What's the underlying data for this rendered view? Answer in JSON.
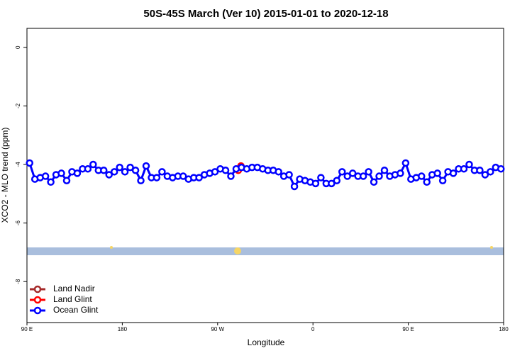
{
  "chart_data": {
    "type": "line",
    "title": "50S-45S March (Ver 10)   2015-01-01 to 2020-12-18",
    "x_label": "Longitude",
    "y_label": "XCO2 - MLO trend (ppm)",
    "xlim": [
      90,
      540
    ],
    "ylim": [
      -9.4,
      0.65
    ],
    "xticks": [
      {
        "value": 90,
        "label": "90 E"
      },
      180,
      {
        "value": 270,
        "label": "90 W"
      },
      {
        "value": 360,
        "label": "0"
      },
      {
        "value": 450,
        "label": "90 E"
      },
      {
        "value": 540,
        "label": "180"
      }
    ],
    "yticks": [
      0,
      -2,
      -4,
      -6,
      -8
    ],
    "legend": "bottom-left",
    "series": [
      {
        "name": "Land Nadir",
        "color": "#a52a2a",
        "x": [],
        "values": []
      },
      {
        "name": "Land Glint",
        "color": "#ff0000",
        "x": [
          289.5,
          292
        ],
        "values": [
          -4.2,
          -4.05
        ]
      },
      {
        "name": "Ocean Glint",
        "color": "#0000ff",
        "x": [
          92.5,
          97.5,
          102.5,
          107.5,
          112.5,
          117.5,
          122.5,
          127.5,
          132.5,
          137.5,
          142.5,
          147.5,
          152.5,
          157.5,
          162.5,
          167.5,
          172.5,
          177.5,
          182.5,
          187.5,
          192.5,
          197.5,
          202.5,
          207.5,
          212.5,
          217.5,
          222.5,
          227.5,
          232.5,
          237.5,
          242.5,
          247.5,
          252.5,
          257.5,
          262.5,
          267.5,
          272.5,
          277.5,
          282.5,
          287.5,
          292.5,
          297.5,
          302.5,
          307.5,
          312.5,
          317.5,
          322.5,
          327.5,
          332.5,
          337.5,
          342.5,
          347.5,
          352.5,
          357.5,
          362.5,
          367.5,
          372.5,
          377.5,
          382.5,
          387.5,
          392.5,
          397.5,
          402.5,
          407.5,
          412.5,
          417.5,
          422.5,
          427.5,
          432.5,
          437.5,
          442.5,
          447.5,
          452.5,
          457.5,
          462.5,
          467.5,
          472.5,
          477.5,
          482.5,
          487.5,
          492.5,
          497.5,
          502.5,
          507.5,
          512.5,
          517.5,
          522.5,
          527.5,
          532.5,
          537.5
        ],
        "values": [
          -3.95,
          -4.5,
          -4.45,
          -4.4,
          -4.6,
          -4.35,
          -4.3,
          -4.55,
          -4.25,
          -4.3,
          -4.15,
          -4.15,
          -4.0,
          -4.2,
          -4.2,
          -4.35,
          -4.25,
          -4.1,
          -4.25,
          -4.1,
          -4.2,
          -4.55,
          -4.05,
          -4.45,
          -4.45,
          -4.25,
          -4.4,
          -4.45,
          -4.4,
          -4.4,
          -4.5,
          -4.45,
          -4.45,
          -4.35,
          -4.3,
          -4.25,
          -4.15,
          -4.2,
          -4.4,
          -4.15,
          -4.1,
          -4.15,
          -4.1,
          -4.1,
          -4.15,
          -4.2,
          -4.2,
          -4.25,
          -4.4,
          -4.35,
          -4.75,
          -4.5,
          -4.55,
          -4.6,
          -4.65,
          -4.45,
          -4.65,
          -4.65,
          -4.55,
          -4.25,
          -4.4,
          -4.3,
          -4.4,
          -4.4,
          -4.25,
          -4.6,
          -4.4,
          -4.2,
          -4.4,
          -4.35,
          -4.3,
          -3.95,
          -4.5,
          -4.45,
          -4.4,
          -4.6,
          -4.35,
          -4.3,
          -4.55,
          -4.25,
          -4.3,
          -4.15,
          -4.15,
          -4.0,
          -4.2,
          -4.2,
          -4.35,
          -4.25,
          -4.1,
          -4.15
        ]
      }
    ]
  }
}
